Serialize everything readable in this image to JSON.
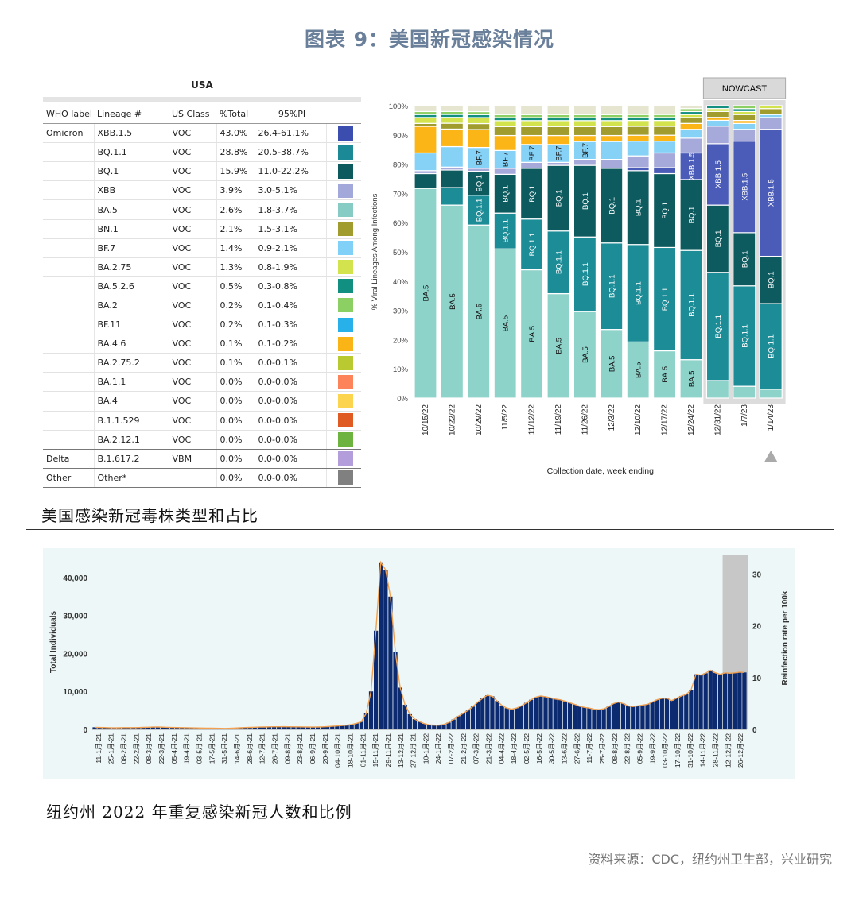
{
  "header": {
    "title": "图表 9：美国新冠感染情况"
  },
  "variant_table": {
    "title": "USA",
    "columns": [
      "WHO label",
      "Lineage #",
      "US Class",
      "%Total",
      "95%PI"
    ],
    "rows": [
      {
        "who": "Omicron",
        "lineage": "XBB.1.5",
        "cls": "VOC",
        "pct": "43.0%",
        "pi": "26.4-61.1%",
        "color": "#3c4db0"
      },
      {
        "who": "",
        "lineage": "BQ.1.1",
        "cls": "VOC",
        "pct": "28.8%",
        "pi": "20.5-38.7%",
        "color": "#1b8a96"
      },
      {
        "who": "",
        "lineage": "BQ.1",
        "cls": "VOC",
        "pct": "15.9%",
        "pi": "11.0-22.2%",
        "color": "#0d5a5e"
      },
      {
        "who": "",
        "lineage": "XBB",
        "cls": "VOC",
        "pct": "3.9%",
        "pi": "3.0-5.1%",
        "color": "#a3a8da"
      },
      {
        "who": "",
        "lineage": "BA.5",
        "cls": "VOC",
        "pct": "2.6%",
        "pi": "1.8-3.7%",
        "color": "#86ccc5"
      },
      {
        "who": "",
        "lineage": "BN.1",
        "cls": "VOC",
        "pct": "2.1%",
        "pi": "1.5-3.1%",
        "color": "#a09c2e"
      },
      {
        "who": "",
        "lineage": "BF.7",
        "cls": "VOC",
        "pct": "1.4%",
        "pi": "0.9-2.1%",
        "color": "#80d0f7"
      },
      {
        "who": "",
        "lineage": "BA.2.75",
        "cls": "VOC",
        "pct": "1.3%",
        "pi": "0.8-1.9%",
        "color": "#d2e34e"
      },
      {
        "who": "",
        "lineage": "BA.5.2.6",
        "cls": "VOC",
        "pct": "0.5%",
        "pi": "0.3-0.8%",
        "color": "#118f80"
      },
      {
        "who": "",
        "lineage": "BA.2",
        "cls": "VOC",
        "pct": "0.2%",
        "pi": "0.1-0.4%",
        "color": "#8ccf62"
      },
      {
        "who": "",
        "lineage": "BF.11",
        "cls": "VOC",
        "pct": "0.2%",
        "pi": "0.1-0.3%",
        "color": "#27b0ea"
      },
      {
        "who": "",
        "lineage": "BA.4.6",
        "cls": "VOC",
        "pct": "0.1%",
        "pi": "0.1-0.2%",
        "color": "#fbb416"
      },
      {
        "who": "",
        "lineage": "BA.2.75.2",
        "cls": "VOC",
        "pct": "0.1%",
        "pi": "0.0-0.1%",
        "color": "#b9ca30"
      },
      {
        "who": "",
        "lineage": "BA.1.1",
        "cls": "VOC",
        "pct": "0.0%",
        "pi": "0.0-0.0%",
        "color": "#fd845a"
      },
      {
        "who": "",
        "lineage": "BA.4",
        "cls": "VOC",
        "pct": "0.0%",
        "pi": "0.0-0.0%",
        "color": "#fdd44e"
      },
      {
        "who": "",
        "lineage": "B.1.1.529",
        "cls": "VOC",
        "pct": "0.0%",
        "pi": "0.0-0.0%",
        "color": "#e05a24"
      },
      {
        "who": "",
        "lineage": "BA.2.12.1",
        "cls": "VOC",
        "pct": "0.0%",
        "pi": "0.0-0.0%",
        "color": "#6db33f"
      },
      {
        "who": "Delta",
        "lineage": "B.1.617.2",
        "cls": "VBM",
        "pct": "0.0%",
        "pi": "0.0-0.0%",
        "color": "#b39ddb"
      },
      {
        "who": "Other",
        "lineage": "Other*",
        "cls": "",
        "pct": "0.0%",
        "pi": "0.0-0.0%",
        "color": "#808080"
      }
    ]
  },
  "caption1": "美国感染新冠毒株类型和占比",
  "caption2": "纽约州 2022 年重复感染新冠人数和比例",
  "source": "资料来源：CDC，纽约州卫生部，兴业研究",
  "chart_data": [
    {
      "type": "bar",
      "stacked": true,
      "nowcast_label": "NOWCAST",
      "categories": [
        "10/15/22",
        "10/22/22",
        "10/29/22",
        "11/5/22",
        "11/12/22",
        "11/19/22",
        "11/26/22",
        "12/3/22",
        "12/10/22",
        "12/17/22",
        "12/24/22",
        "12/31/22",
        "1/7/23",
        "1/14/23"
      ],
      "nowcast_categories": [
        "12/31/22",
        "1/7/23",
        "1/14/23"
      ],
      "ylabel": "% Viral Lineages Among Infections",
      "xlabel": "Collection date, week ending",
      "ylim": [
        0,
        100
      ],
      "yticks": [
        "0%",
        "10%",
        "20%",
        "30%",
        "40%",
        "50%",
        "60%",
        "70%",
        "80%",
        "90%",
        "100%"
      ],
      "series": [
        {
          "name": "BA.5",
          "color": "#8ed3ca",
          "values": [
            71,
            66,
            58,
            50,
            43,
            35,
            29,
            23,
            19,
            16,
            13,
            6,
            4,
            3
          ],
          "labels": [
            "BA.5",
            "BA.5",
            "BA.5",
            "BA.5",
            "BA.5",
            "BA.5",
            "BA.5",
            "BA.5",
            "BA.5",
            "BA.5",
            "BA.5",
            "",
            "",
            ""
          ]
        },
        {
          "name": "BQ.1.1",
          "color": "#1c8c97",
          "values": [
            0,
            6,
            0,
            12,
            17,
            21,
            25,
            29,
            33,
            35,
            37,
            37,
            34,
            29
          ],
          "labels": [
            "",
            "",
            "",
            "BQ.1.1",
            "BQ.1.1",
            "BQ.1.1",
            "BQ.1.1",
            "BQ.1.1",
            "BQ.1.1",
            "BQ.1.1",
            "BQ.1.1",
            "BQ.1.1",
            "BQ.1.1",
            "BQ.1.1"
          ]
        },
        {
          "name": "BQ.1.1 (early)",
          "color": "#1c8c97",
          "values": [
            0,
            0,
            10,
            0,
            0,
            0,
            0,
            0,
            0,
            0,
            0,
            0,
            0,
            0
          ],
          "labels": [
            "",
            "",
            "BQ.1.1",
            "",
            "",
            "",
            "",
            "",
            "",
            "",
            "",
            "",
            "",
            ""
          ]
        },
        {
          "name": "BQ.1",
          "color": "#0d5b5f",
          "values": [
            5,
            6,
            8,
            13,
            17,
            22,
            24,
            25,
            25,
            25,
            24,
            23,
            18,
            16
          ],
          "labels": [
            "",
            "",
            "BQ.1",
            "BQ.1",
            "BQ.1",
            "BQ.1",
            "BQ.1",
            "BQ.1",
            "BQ.1",
            "BQ.1",
            "BQ.1",
            "BQ.1",
            "BQ.1",
            "BQ.1"
          ]
        },
        {
          "name": "XBB.1.5",
          "color": "#4a5bb8",
          "values": [
            0,
            0,
            0,
            0,
            0,
            0,
            0,
            0,
            1,
            2,
            9,
            21,
            31,
            43
          ],
          "labels": [
            "",
            "",
            "",
            "",
            "",
            "",
            "",
            "",
            "",
            "",
            "XBB.1.5",
            "XBB.1.5",
            "XBB.1.5",
            "XBB.1.5"
          ]
        },
        {
          "name": "XBB",
          "color": "#a5aadb",
          "values": [
            1,
            1,
            1,
            2,
            2,
            1,
            2,
            3,
            4,
            5,
            5,
            6,
            4,
            4
          ],
          "labels": []
        },
        {
          "name": "BF.7",
          "color": "#86d2f7",
          "values": [
            6,
            7,
            7,
            6,
            6,
            6,
            6,
            6,
            5,
            4,
            3,
            2,
            2,
            1
          ],
          "labels": [
            "",
            "",
            "BF.7",
            "BF.7",
            "BF.7",
            "BF.7",
            "BF.7",
            "",
            "",
            "",
            "",
            "",
            "",
            ""
          ]
        },
        {
          "name": "BA.4.6",
          "color": "#fbb516",
          "values": [
            9,
            6,
            6,
            5,
            3,
            3,
            2,
            2,
            2,
            2,
            2,
            1,
            1,
            0
          ],
          "labels": []
        },
        {
          "name": "BN.1",
          "color": "#a09d2e",
          "values": [
            1,
            2,
            2,
            3,
            3,
            3,
            3,
            3,
            3,
            3,
            2,
            2,
            2,
            2
          ],
          "labels": []
        },
        {
          "name": "BA.2.75",
          "color": "#d2e34e",
          "values": [
            2,
            2,
            2,
            2,
            2,
            2,
            2,
            2,
            2,
            2,
            1,
            1,
            1,
            1
          ],
          "labels": []
        },
        {
          "name": "BA.5.2.6",
          "color": "#149080",
          "values": [
            1,
            1,
            1,
            1,
            1,
            1,
            1,
            1,
            1,
            1,
            1,
            1,
            1,
            0
          ],
          "labels": []
        },
        {
          "name": "BA.2",
          "color": "#8ccf62",
          "values": [
            1,
            1,
            1,
            1,
            1,
            1,
            1,
            1,
            1,
            1,
            1,
            0,
            1,
            0
          ],
          "labels": []
        },
        {
          "name": "Other",
          "color": "#e6e5d0",
          "values": [
            2,
            2,
            2,
            3,
            3,
            3,
            3,
            3,
            3,
            3,
            1,
            0,
            0,
            0
          ],
          "labels": []
        }
      ]
    },
    {
      "type": "bar",
      "ylabel": "Total Individuals",
      "y2label": "Reinfection rate per 100k",
      "ylim": [
        0,
        45000
      ],
      "y2lim": [
        0,
        33
      ],
      "yticks": [
        "0",
        "10,000",
        "20,000",
        "30,000",
        "40,000"
      ],
      "y2ticks": [
        "0",
        "10",
        "20",
        "30"
      ],
      "x_labels": [
        "11-1月-21",
        "25-1月-21",
        "08-2月-21",
        "22-2月-21",
        "08-3月-21",
        "22-3月-21",
        "05-4月-21",
        "19-4月-21",
        "03-5月-21",
        "17-5月-21",
        "31-5月-21",
        "14-6月-21",
        "28-6月-21",
        "12-7月-21",
        "26-7月-21",
        "09-8月-21",
        "23-8月-21",
        "06-9月-21",
        "20-9月-21",
        "04-10月-21",
        "18-10月-21",
        "01-11月-21",
        "15-11月-21",
        "29-11月-21",
        "13-12月-21",
        "27-12月-21",
        "10-1月-22",
        "24-1月-22",
        "07-2月-22",
        "21-2月-22",
        "07-3月-22",
        "21-3月-22",
        "04-4月-22",
        "18-4月-22",
        "02-5月-22",
        "16-5月-22",
        "30-5月-22",
        "13-6月-22",
        "27-6月-22",
        "11-7月-22",
        "25-7月-22",
        "08-8月-22",
        "22-8月-22",
        "05-9月-22",
        "19-9月-22",
        "03-10月-22",
        "17-10月-22",
        "31-10月-22",
        "14-11月-22",
        "28-11月-22",
        "12-12月-22",
        "26-12月-22"
      ],
      "values": [
        550,
        500,
        480,
        430,
        400,
        420,
        450,
        460,
        470,
        480,
        520,
        560,
        600,
        620,
        580,
        540,
        500,
        480,
        450,
        430,
        400,
        380,
        360,
        340,
        320,
        300,
        280,
        260,
        300,
        350,
        420,
        480,
        520,
        560,
        600,
        630,
        660,
        690,
        700,
        720,
        700,
        680,
        660,
        640,
        620,
        600,
        620,
        680,
        740,
        820,
        900,
        1000,
        1100,
        1300,
        1600,
        2000,
        4200,
        10000,
        26000,
        44000,
        42000,
        35000,
        20500,
        11000,
        6500,
        4000,
        2700,
        2000,
        1500,
        1200,
        1100,
        1100,
        1300,
        1800,
        2600,
        3500,
        4200,
        5000,
        6000,
        7200,
        8200,
        9000,
        8700,
        7500,
        6300,
        5600,
        5300,
        5600,
        6200,
        7000,
        7800,
        8500,
        8800,
        8600,
        8300,
        8000,
        7800,
        7400,
        7000,
        6600,
        6100,
        5800,
        5600,
        5300,
        5200,
        5400,
        6000,
        6800,
        7200,
        6800,
        6200,
        6000,
        6200,
        6400,
        6600,
        7200,
        7800,
        8200,
        8200,
        7600,
        8200,
        8800,
        9200,
        10400,
        14500,
        14300,
        14800,
        15600,
        14900,
        14500,
        14900,
        14800,
        14900,
        15100,
        15000
      ],
      "note": "Right gray band marks incomplete recent data"
    }
  ]
}
